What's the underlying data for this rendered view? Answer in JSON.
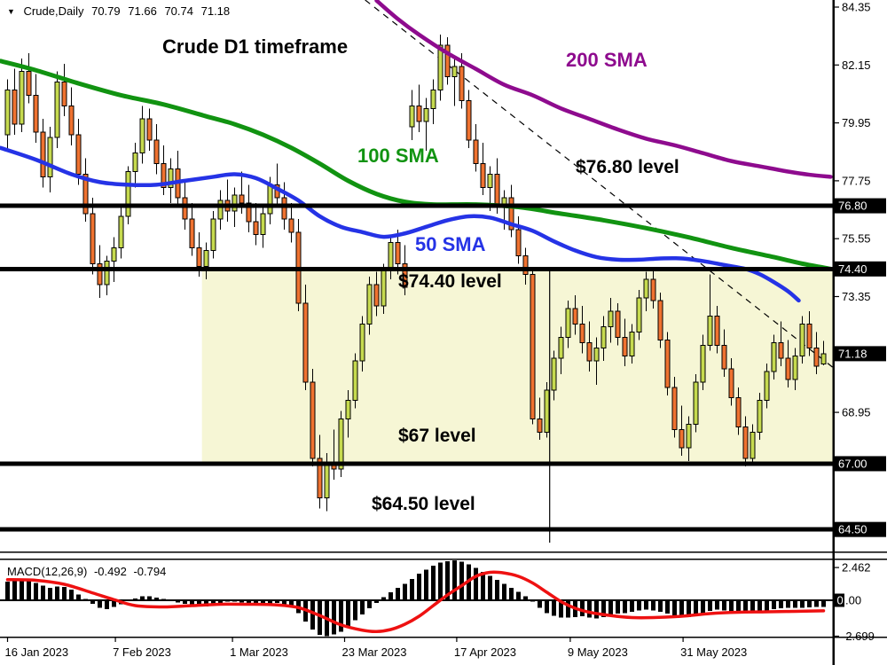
{
  "header": {
    "dropdown_icon": "▼",
    "symbol": "Crude,Daily",
    "open": "70.79",
    "high": "71.66",
    "low": "70.74",
    "close": "71.18"
  },
  "annotations": {
    "title": "Crude D1 timeframe",
    "sma200": "200 SMA",
    "sma100": "100 SMA",
    "sma50": "50 SMA",
    "level_7680": "$76.80 level",
    "level_7440": "$74.40 level",
    "level_67": "$67 level",
    "level_6450": "$64.50 level"
  },
  "indicator_label": {
    "name": "MACD(12,26,9)",
    "macd_value": "-0.492",
    "signal_value": "-0.794"
  },
  "colors": {
    "bull": "#c6da4f",
    "bear": "#ef7230",
    "outline": "#000000",
    "sma50": "#2533e6",
    "sma100": "#119311",
    "sma200": "#8e0b8e",
    "macd_signal": "#ee1111",
    "macd_hist": "#000000",
    "zone": "#f6f6d5",
    "level_line": "#000000",
    "tag_bg": "#000000",
    "tag_text": "#ffffff",
    "axis_text": "#000000"
  },
  "chart_data": {
    "type": "candlestick",
    "title": "Crude D1 timeframe",
    "instrument": "Crude,Daily",
    "timeframe": "D1",
    "ylim": [
      63.9,
      84.62
    ],
    "y_ticks": [
      {
        "label": "84.35",
        "value": 84.35
      },
      {
        "label": "82.15",
        "value": 82.15
      },
      {
        "label": "79.95",
        "value": 79.95
      },
      {
        "label": "77.75",
        "value": 77.75
      },
      {
        "label": "75.55",
        "value": 75.55
      },
      {
        "label": "73.35",
        "value": 73.35
      },
      {
        "label": "68.95",
        "value": 68.95
      }
    ],
    "y_tags": [
      {
        "label": "76.80",
        "value": 76.8
      },
      {
        "label": "74.40",
        "value": 74.4
      },
      {
        "label": "71.18",
        "value": 71.18
      },
      {
        "label": "67.00",
        "value": 67.0
      },
      {
        "label": "64.50",
        "value": 64.5
      }
    ],
    "x_ticks": [
      {
        "label": "16 Jan 2023",
        "index": 0
      },
      {
        "label": "7 Feb 2023",
        "index": 15.2
      },
      {
        "label": "1 Mar 2023",
        "index": 31.7
      },
      {
        "label": "23 Mar 2023",
        "index": 47.5
      },
      {
        "label": "17 Apr 2023",
        "index": 63.3
      },
      {
        "label": "9 May 2023",
        "index": 79.3
      },
      {
        "label": "31 May 2023",
        "index": 95.2
      }
    ],
    "levels": [
      76.8,
      74.4,
      67.0,
      64.5
    ],
    "highlight_zone": {
      "price_top": 74.4,
      "price_bottom": 67.0,
      "start_index": 27.4,
      "end_index": 116.4
    },
    "trendline": {
      "style": "dashed",
      "from_index": 50.4,
      "from_price": 84.62,
      "to_index": 116.4,
      "to_price": 70.64
    },
    "vertical_line": {
      "index": 76.4,
      "price_top": 74.4,
      "price_bottom": 64.0
    },
    "candles": [
      [
        79.5,
        81.6,
        78.9,
        81.2
      ],
      [
        81.2,
        82.0,
        79.5,
        79.9
      ],
      [
        79.9,
        82.4,
        79.6,
        81.9
      ],
      [
        81.9,
        82.6,
        80.7,
        81.0
      ],
      [
        81.0,
        81.8,
        79.2,
        79.6
      ],
      [
        79.6,
        80.1,
        77.5,
        77.9
      ],
      [
        77.9,
        79.8,
        77.3,
        79.4
      ],
      [
        79.4,
        81.9,
        79.0,
        81.5
      ],
      [
        81.5,
        82.2,
        80.2,
        80.6
      ],
      [
        80.6,
        81.3,
        79.1,
        79.5
      ],
      [
        79.5,
        80.1,
        77.6,
        78.0
      ],
      [
        78.0,
        78.6,
        76.2,
        76.5
      ],
      [
        76.5,
        77.1,
        74.2,
        74.6
      ],
      [
        74.6,
        75.3,
        73.3,
        73.8
      ],
      [
        73.8,
        74.9,
        73.4,
        74.7
      ],
      [
        74.7,
        75.6,
        73.9,
        75.2
      ],
      [
        75.2,
        76.8,
        74.8,
        76.4
      ],
      [
        76.4,
        78.3,
        76.1,
        78.1
      ],
      [
        78.1,
        79.2,
        77.5,
        78.8
      ],
      [
        78.8,
        80.6,
        78.4,
        80.1
      ],
      [
        80.1,
        80.5,
        78.9,
        79.3
      ],
      [
        79.3,
        79.9,
        78.0,
        78.4
      ],
      [
        78.4,
        79.1,
        77.2,
        77.5
      ],
      [
        77.5,
        78.6,
        76.9,
        78.2
      ],
      [
        78.2,
        78.9,
        76.8,
        77.1
      ],
      [
        77.1,
        77.8,
        75.9,
        76.3
      ],
      [
        76.3,
        76.9,
        74.9,
        75.2
      ],
      [
        75.2,
        75.8,
        74.1,
        74.5
      ],
      [
        74.5,
        75.4,
        74.0,
        75.1
      ],
      [
        75.1,
        76.6,
        74.8,
        76.3
      ],
      [
        76.3,
        77.4,
        75.9,
        77.0
      ],
      [
        77.0,
        77.8,
        76.2,
        76.6
      ],
      [
        76.6,
        77.5,
        76.0,
        77.2
      ],
      [
        77.2,
        78.1,
        76.5,
        76.9
      ],
      [
        76.9,
        77.6,
        75.8,
        76.2
      ],
      [
        76.2,
        76.9,
        75.3,
        75.7
      ],
      [
        75.7,
        76.8,
        75.2,
        76.5
      ],
      [
        76.5,
        77.9,
        76.1,
        77.6
      ],
      [
        77.6,
        78.4,
        76.8,
        77.1
      ],
      [
        77.1,
        77.7,
        75.9,
        76.3
      ],
      [
        76.3,
        76.9,
        75.4,
        75.8
      ],
      [
        75.8,
        76.3,
        72.8,
        73.1
      ],
      [
        73.1,
        73.8,
        69.8,
        70.1
      ],
      [
        70.1,
        70.6,
        66.9,
        67.2
      ],
      [
        67.2,
        68.1,
        65.3,
        65.7
      ],
      [
        65.7,
        67.4,
        65.2,
        67.0
      ],
      [
        67.0,
        68.3,
        66.4,
        66.8
      ],
      [
        66.8,
        69.0,
        66.5,
        68.7
      ],
      [
        68.7,
        69.8,
        68.0,
        69.4
      ],
      [
        69.4,
        71.2,
        69.1,
        70.9
      ],
      [
        70.9,
        72.6,
        70.5,
        72.3
      ],
      [
        72.3,
        74.1,
        71.9,
        73.8
      ],
      [
        73.8,
        74.3,
        72.6,
        73.0
      ],
      [
        73.0,
        74.6,
        72.7,
        74.4
      ],
      [
        74.4,
        75.7,
        74.0,
        75.4
      ],
      [
        75.4,
        75.9,
        74.2,
        74.6
      ],
      [
        74.6,
        75.3,
        73.4,
        73.7
      ],
      [
        79.8,
        81.2,
        79.3,
        80.6
      ],
      [
        80.6,
        81.4,
        79.6,
        80.0
      ],
      [
        80.0,
        80.9,
        78.9,
        80.5
      ],
      [
        80.5,
        81.6,
        79.9,
        81.2
      ],
      [
        81.2,
        83.3,
        80.8,
        82.9
      ],
      [
        82.9,
        83.2,
        81.4,
        81.7
      ],
      [
        81.7,
        82.5,
        80.6,
        82.1
      ],
      [
        82.1,
        82.6,
        80.5,
        80.8
      ],
      [
        80.8,
        81.2,
        79.0,
        79.3
      ],
      [
        79.3,
        79.9,
        78.1,
        78.4
      ],
      [
        78.4,
        79.2,
        77.2,
        77.5
      ],
      [
        77.5,
        78.3,
        76.6,
        78.0
      ],
      [
        78.0,
        78.6,
        76.5,
        76.8
      ],
      [
        76.8,
        77.4,
        75.9,
        77.1
      ],
      [
        77.1,
        77.6,
        75.6,
        75.9
      ],
      [
        75.9,
        76.4,
        74.6,
        74.9
      ],
      [
        74.9,
        75.2,
        73.8,
        74.2
      ],
      [
        74.2,
        74.4,
        68.5,
        68.7
      ],
      [
        68.7,
        69.5,
        67.9,
        68.2
      ],
      [
        68.2,
        70.1,
        68.0,
        69.8
      ],
      [
        69.8,
        71.3,
        69.4,
        71.0
      ],
      [
        71.0,
        72.2,
        70.4,
        71.8
      ],
      [
        71.8,
        73.2,
        71.4,
        72.9
      ],
      [
        72.9,
        73.4,
        71.9,
        72.3
      ],
      [
        72.3,
        73.0,
        71.2,
        71.6
      ],
      [
        71.6,
        72.4,
        70.5,
        70.9
      ],
      [
        70.9,
        71.8,
        70.0,
        71.4
      ],
      [
        71.4,
        72.6,
        70.9,
        72.2
      ],
      [
        72.2,
        73.3,
        71.6,
        72.8
      ],
      [
        72.8,
        73.1,
        71.5,
        71.8
      ],
      [
        71.8,
        72.5,
        70.7,
        71.1
      ],
      [
        71.1,
        72.3,
        70.8,
        72.0
      ],
      [
        72.0,
        73.6,
        71.7,
        73.3
      ],
      [
        73.3,
        74.3,
        72.8,
        74.0
      ],
      [
        74.0,
        74.4,
        72.9,
        73.2
      ],
      [
        73.2,
        73.5,
        71.4,
        71.7
      ],
      [
        71.7,
        72.0,
        69.6,
        69.9
      ],
      [
        69.9,
        70.3,
        68.0,
        68.3
      ],
      [
        68.3,
        69.2,
        67.3,
        67.6
      ],
      [
        67.6,
        68.8,
        67.1,
        68.5
      ],
      [
        68.5,
        70.4,
        68.2,
        70.1
      ],
      [
        70.1,
        71.9,
        69.8,
        71.5
      ],
      [
        71.5,
        74.2,
        71.3,
        72.6
      ],
      [
        72.6,
        73.0,
        71.2,
        71.5
      ],
      [
        71.5,
        72.1,
        70.3,
        70.6
      ],
      [
        70.6,
        71.0,
        69.2,
        69.5
      ],
      [
        69.5,
        69.9,
        68.1,
        68.4
      ],
      [
        68.4,
        68.8,
        66.9,
        67.2
      ],
      [
        67.2,
        68.5,
        67.0,
        68.2
      ],
      [
        68.2,
        69.7,
        67.9,
        69.4
      ],
      [
        69.4,
        70.8,
        69.1,
        70.5
      ],
      [
        70.5,
        71.9,
        70.2,
        71.6
      ],
      [
        71.6,
        72.4,
        70.7,
        71.0
      ],
      [
        71.0,
        71.7,
        69.9,
        70.2
      ],
      [
        70.2,
        71.4,
        69.8,
        71.1
      ],
      [
        71.1,
        72.6,
        70.8,
        72.3
      ],
      [
        72.3,
        72.8,
        71.1,
        71.4
      ],
      [
        71.4,
        72.0,
        70.4,
        70.7
      ],
      [
        70.79,
        71.66,
        70.74,
        71.18
      ]
    ],
    "sma200": [
      [
        52,
        84.6
      ],
      [
        55,
        83.9
      ],
      [
        58,
        83.3
      ],
      [
        62,
        82.6
      ],
      [
        66,
        82.0
      ],
      [
        70,
        81.4
      ],
      [
        74,
        81.0
      ],
      [
        78,
        80.5
      ],
      [
        82,
        80.1
      ],
      [
        86,
        79.7
      ],
      [
        90,
        79.35
      ],
      [
        94,
        79.1
      ],
      [
        98,
        78.8
      ],
      [
        102,
        78.5
      ],
      [
        106,
        78.3
      ],
      [
        110,
        78.1
      ],
      [
        113,
        77.98
      ],
      [
        116,
        77.9
      ]
    ],
    "sma100": [
      [
        -1,
        82.3
      ],
      [
        4,
        81.95
      ],
      [
        10,
        81.45
      ],
      [
        16,
        81.0
      ],
      [
        22,
        80.65
      ],
      [
        28,
        80.2
      ],
      [
        32,
        79.9
      ],
      [
        36,
        79.5
      ],
      [
        40,
        79.0
      ],
      [
        44,
        78.4
      ],
      [
        48,
        77.75
      ],
      [
        52,
        77.25
      ],
      [
        56,
        76.95
      ],
      [
        60,
        76.85
      ],
      [
        66,
        76.85
      ],
      [
        72,
        76.75
      ],
      [
        78,
        76.5
      ],
      [
        84,
        76.25
      ],
      [
        90,
        75.95
      ],
      [
        96,
        75.6
      ],
      [
        102,
        75.2
      ],
      [
        108,
        74.85
      ],
      [
        112,
        74.6
      ],
      [
        116,
        74.4
      ]
    ],
    "sma50": [
      [
        -1,
        79.0
      ],
      [
        4,
        78.55
      ],
      [
        9,
        78.0
      ],
      [
        13,
        77.7
      ],
      [
        17,
        77.6
      ],
      [
        21,
        77.6
      ],
      [
        25,
        77.75
      ],
      [
        29,
        77.9
      ],
      [
        32,
        78.0
      ],
      [
        35,
        77.85
      ],
      [
        38,
        77.45
      ],
      [
        41,
        77.0
      ],
      [
        44,
        76.4
      ],
      [
        47,
        76.0
      ],
      [
        50,
        75.8
      ],
      [
        53,
        75.62
      ],
      [
        56,
        75.75
      ],
      [
        59,
        76.0
      ],
      [
        62,
        76.25
      ],
      [
        65,
        76.4
      ],
      [
        68,
        76.35
      ],
      [
        71,
        76.1
      ],
      [
        74,
        75.85
      ],
      [
        77,
        75.45
      ],
      [
        80,
        75.1
      ],
      [
        83,
        74.85
      ],
      [
        86,
        74.75
      ],
      [
        89,
        74.75
      ],
      [
        92,
        74.8
      ],
      [
        95,
        74.8
      ],
      [
        98,
        74.7
      ],
      [
        101,
        74.55
      ],
      [
        104,
        74.4
      ],
      [
        106,
        74.2
      ],
      [
        108,
        73.9
      ],
      [
        110,
        73.55
      ],
      [
        111.5,
        73.2
      ]
    ],
    "macd": {
      "ticks": [
        {
          "label": "2.462",
          "value": 2.462
        },
        {
          "label": "0.00",
          "value": 0
        },
        {
          "label": "-2.699",
          "value": -2.699
        }
      ],
      "last_macd": -0.492,
      "last_signal": -0.794,
      "histogram": [
        1.4,
        1.55,
        1.65,
        1.5,
        1.3,
        1.1,
        0.95,
        1.05,
        1.0,
        0.8,
        0.45,
        0.1,
        -0.25,
        -0.55,
        -0.65,
        -0.5,
        -0.3,
        -0.05,
        0.15,
        0.3,
        0.3,
        0.2,
        0.1,
        -0.05,
        -0.15,
        -0.25,
        -0.35,
        -0.45,
        -0.45,
        -0.35,
        -0.2,
        -0.1,
        -0.1,
        -0.15,
        -0.25,
        -0.35,
        -0.35,
        -0.25,
        -0.2,
        -0.3,
        -0.45,
        -0.95,
        -1.6,
        -2.2,
        -2.6,
        -2.7,
        -2.55,
        -2.35,
        -1.95,
        -1.5,
        -1.05,
        -0.6,
        -0.2,
        0.25,
        0.6,
        0.95,
        1.25,
        1.6,
        2.0,
        2.3,
        2.6,
        2.85,
        2.95,
        3.0,
        2.9,
        2.7,
        2.45,
        2.15,
        1.85,
        1.55,
        1.25,
        0.95,
        0.65,
        0.3,
        -0.1,
        -0.55,
        -0.95,
        -1.15,
        -1.3,
        -1.3,
        -1.25,
        -1.2,
        -1.3,
        -1.35,
        -1.25,
        -1.1,
        -1.0,
        -0.95,
        -0.85,
        -0.75,
        -0.7,
        -0.75,
        -0.85,
        -1.0,
        -1.15,
        -1.3,
        -1.25,
        -1.15,
        -0.95,
        -0.8,
        -0.7,
        -0.75,
        -0.85,
        -0.95,
        -1.0,
        -0.95,
        -0.85,
        -0.75,
        -0.65,
        -0.6,
        -0.55,
        -0.55,
        -0.55,
        -0.52,
        -0.5,
        -0.492
      ],
      "signal_points": [
        [
          0,
          1.55
        ],
        [
          4,
          1.5
        ],
        [
          8,
          1.2
        ],
        [
          12,
          0.55
        ],
        [
          15,
          0.05
        ],
        [
          18,
          -0.4
        ],
        [
          22,
          -0.5
        ],
        [
          26,
          -0.4
        ],
        [
          30,
          -0.3
        ],
        [
          34,
          -0.3
        ],
        [
          38,
          -0.35
        ],
        [
          41,
          -0.55
        ],
        [
          44,
          -1.15
        ],
        [
          47,
          -1.85
        ],
        [
          50,
          -2.25
        ],
        [
          52,
          -2.35
        ],
        [
          54,
          -2.2
        ],
        [
          56,
          -1.8
        ],
        [
          58,
          -1.2
        ],
        [
          60,
          -0.4
        ],
        [
          62,
          0.4
        ],
        [
          64,
          1.1
        ],
        [
          66,
          1.8
        ],
        [
          68,
          2.1
        ],
        [
          70,
          2.05
        ],
        [
          72,
          1.8
        ],
        [
          74,
          1.3
        ],
        [
          76,
          0.6
        ],
        [
          78,
          -0.1
        ],
        [
          80,
          -0.6
        ],
        [
          82,
          -0.9
        ],
        [
          85,
          -1.15
        ],
        [
          88,
          -1.3
        ],
        [
          91,
          -1.3
        ],
        [
          95,
          -1.2
        ],
        [
          99,
          -1.0
        ],
        [
          103,
          -0.9
        ],
        [
          107,
          -0.87
        ],
        [
          111,
          -0.83
        ],
        [
          115,
          -0.79
        ]
      ]
    }
  }
}
